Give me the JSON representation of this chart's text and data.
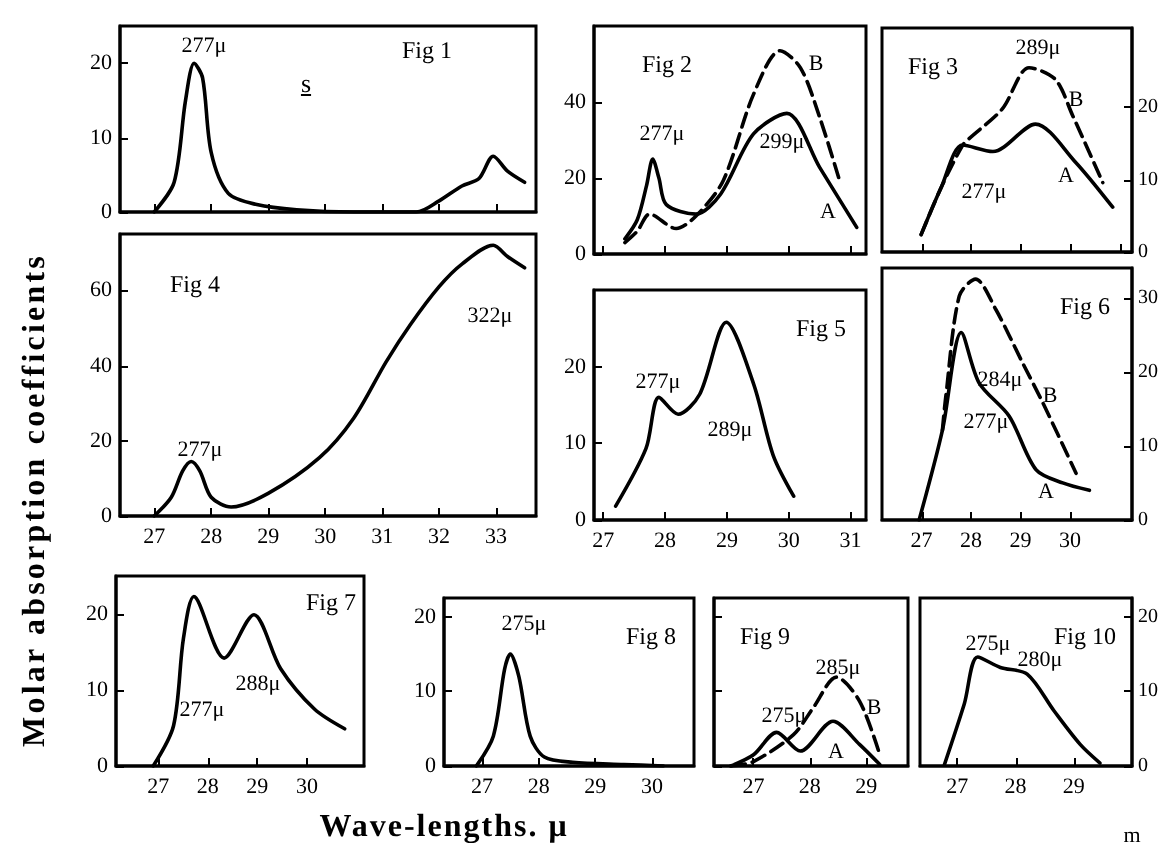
{
  "chart_data": [
    {
      "type": "line",
      "title": "Fig 1",
      "xlim": [
        26.4,
        33.7
      ],
      "xticks": [
        27,
        28,
        29,
        30,
        31,
        32,
        33
      ],
      "ylim": [
        0,
        25
      ],
      "yticks": [
        0,
        10,
        20
      ],
      "tick_labels": "y",
      "x": [
        27.0,
        27.35,
        27.55,
        27.7,
        27.85,
        28.0,
        28.3,
        28.8,
        29.5,
        30.5,
        31.6,
        32.0,
        32.4,
        32.7,
        32.95,
        33.2,
        33.5
      ],
      "series": [
        {
          "color": "#000000",
          "values": [
            0,
            4,
            15,
            20,
            18,
            8,
            2.5,
            1,
            0.3,
            0,
            0,
            1.5,
            3.5,
            4.5,
            7.5,
            5.5,
            4
          ]
        }
      ],
      "annotations": [
        "277μ",
        "s"
      ]
    },
    {
      "type": "line",
      "title": "Fig 2",
      "xlim": [
        26.85,
        31.25
      ],
      "xticks": [
        27,
        28,
        29,
        30,
        31
      ],
      "ylim": [
        0,
        60
      ],
      "yticks": [
        0,
        20,
        40
      ],
      "tick_labels": "y",
      "series": [
        {
          "color": "#000000",
          "x": [
            27.35,
            27.55,
            27.7,
            27.8,
            27.9,
            28.02,
            28.5,
            28.9,
            29.43,
            29.97,
            30.5,
            31.1
          ],
          "values": [
            4,
            9,
            18,
            25,
            20,
            13,
            10.5,
            15.8,
            31.6,
            37,
            22.8,
            7
          ]
        },
        {
          "color": "#000000",
          "line_style": "dashed",
          "x": [
            27.35,
            27.55,
            27.75,
            28.18,
            28.5,
            28.94,
            29.43,
            29.86,
            30.19,
            30.5,
            30.84
          ],
          "values": [
            3,
            6,
            10.5,
            6.7,
            10,
            19.3,
            42,
            53.5,
            49,
            36,
            18.4
          ]
        }
      ],
      "annotations": [
        "277μ",
        "299μ",
        "A",
        "B"
      ]
    },
    {
      "type": "line",
      "title": "Fig 3",
      "xlim": [
        26.2,
        31.25
      ],
      "xticks": [
        27,
        28,
        29,
        30,
        31
      ],
      "ylim": [
        0,
        31
      ],
      "yticks": [
        0,
        10,
        20
      ],
      "tick_labels": "y",
      "series": [
        {
          "color": "#000000",
          "x": [
            26.99,
            27.4,
            27.83,
            28.44,
            29.3,
            30.1,
            30.86
          ],
          "values": [
            2.4,
            9,
            14.8,
            13.9,
            17.7,
            12.5,
            6.2
          ]
        },
        {
          "color": "#000000",
          "line_style": "dashed",
          "x": [
            26.99,
            27.4,
            27.83,
            27.96,
            28.63,
            29.17,
            29.7,
            30.05,
            30.66
          ],
          "values": [
            2.4,
            9,
            14.8,
            15.7,
            19.8,
            25.5,
            23.9,
            18.9,
            9.6
          ]
        }
      ],
      "annotations": [
        "289μ",
        "B",
        "277μ",
        "A"
      ]
    },
    {
      "type": "line",
      "title": "Fig 4",
      "ylabel": "Molar absorption coefficients",
      "xlim": [
        26.4,
        33.7
      ],
      "xticks": [
        27,
        28,
        29,
        30,
        31,
        32,
        33
      ],
      "ylim": [
        0,
        75
      ],
      "yticks": [
        0,
        20,
        40,
        60
      ],
      "x": [
        27.0,
        27.3,
        27.5,
        27.65,
        27.8,
        28.0,
        28.35,
        29.0,
        29.9,
        30.5,
        31.07,
        31.5,
        32.0,
        32.4,
        32.95,
        33.2,
        33.5
      ],
      "series": [
        {
          "color": "#000000",
          "values": [
            0,
            5,
            12,
            14.5,
            12,
            5,
            2.4,
            6,
            15.5,
            26,
            41,
            51,
            61,
            67,
            72,
            69,
            66
          ]
        }
      ],
      "annotations": [
        "277μ",
        "322μ"
      ]
    },
    {
      "type": "line",
      "title": "Fig 5",
      "xlim": [
        26.85,
        31.25
      ],
      "xticks": [
        27,
        28,
        29,
        30,
        31
      ],
      "ylim": [
        0,
        30
      ],
      "yticks": [
        0,
        10,
        20
      ],
      "series": [
        {
          "color": "#000000",
          "x": [
            27.2,
            27.69,
            27.9,
            28.21,
            28.56,
            28.99,
            29.43,
            29.75,
            30.08
          ],
          "values": [
            1.8,
            9.3,
            16,
            13.8,
            16.4,
            25.8,
            17.8,
            8.4,
            3.1
          ]
        }
      ],
      "annotations": [
        "277μ",
        "289μ"
      ]
    },
    {
      "type": "line",
      "title": "Fig 6",
      "xlim": [
        26.2,
        31.25
      ],
      "xticks": [
        27,
        28,
        29,
        30
      ],
      "ylim": [
        0,
        34
      ],
      "yticks": [
        0,
        10,
        20,
        30
      ],
      "series": [
        {
          "color": "#000000",
          "x": [
            26.95,
            27.42,
            27.8,
            28.16,
            28.77,
            29.31,
            29.85,
            30.39
          ],
          "values": [
            0,
            12.1,
            25.3,
            18.5,
            14,
            6.8,
            5,
            4
          ]
        },
        {
          "color": "#000000",
          "line_style": "dashed",
          "x": [
            27.42,
            27.49,
            27.76,
            28.09,
            28.5,
            29.04,
            29.45,
            30.12
          ],
          "values": [
            12.1,
            16.7,
            30.2,
            32.5,
            28.4,
            21.2,
            15.8,
            6.3
          ]
        }
      ],
      "annotations": [
        "284μ",
        "B",
        "277μ",
        "A"
      ]
    },
    {
      "type": "line",
      "title": "Fig 7",
      "xlim": [
        26.15,
        31.15
      ],
      "xticks": [
        27,
        28,
        29,
        30
      ],
      "ylim": [
        0,
        25
      ],
      "yticks": [
        0,
        10,
        20
      ],
      "series": [
        {
          "color": "#000000",
          "x": [
            26.9,
            27.31,
            27.51,
            27.72,
            28.33,
            28.93,
            29.47,
            30.15,
            30.76
          ],
          "values": [
            0,
            5.3,
            16.8,
            22.3,
            14.2,
            19.9,
            12.8,
            7.5,
            4.9
          ]
        }
      ],
      "annotations": [
        "277μ",
        "288μ"
      ]
    },
    {
      "type": "line",
      "title": "Fig 8",
      "xlabel": "Wave-lengths. μ",
      "xlim": [
        26.33,
        30.74
      ],
      "xticks": [
        27,
        28,
        29,
        30
      ],
      "ylim": [
        0,
        22.5
      ],
      "yticks": [
        0,
        10,
        20
      ],
      "series": [
        {
          "color": "#000000",
          "x": [
            26.9,
            27.2,
            27.4,
            27.5,
            27.65,
            27.85,
            28.1,
            28.6,
            29.5,
            30.2
          ],
          "values": [
            0,
            4,
            13,
            15,
            12,
            4,
            1.2,
            0.5,
            0.2,
            0
          ]
        }
      ],
      "annotations": [
        "275μ"
      ]
    },
    {
      "type": "line",
      "title": "Fig 9",
      "xlim": [
        26.3,
        29.74
      ],
      "xticks": [
        27,
        28,
        29
      ],
      "ylim": [
        0,
        22.5
      ],
      "yticks": [
        0,
        10,
        20
      ],
      "tick_labels": "x",
      "series": [
        {
          "color": "#000000",
          "x": [
            26.6,
            27.0,
            27.41,
            27.83,
            28.41,
            28.88,
            29.24
          ],
          "values": [
            0,
            1.5,
            4.5,
            2,
            6,
            2.9,
            0.2
          ]
        },
        {
          "color": "#000000",
          "line_style": "dashed",
          "x": [
            26.6,
            27.0,
            27.71,
            28.06,
            28.47,
            28.88,
            29.24
          ],
          "values": [
            0,
            0.6,
            4.2,
            7.8,
            11.9,
            8.7,
            1.5
          ]
        }
      ],
      "annotations": [
        "275μ",
        "285μ",
        "B",
        "A"
      ]
    },
    {
      "type": "line",
      "title": "Fig 10",
      "xlim": [
        26.36,
        30.0
      ],
      "xticks": [
        27,
        28,
        29
      ],
      "ylim": [
        0,
        22.5
      ],
      "yticks": [
        0,
        10,
        20
      ],
      "series": [
        {
          "color": "#000000",
          "x": [
            26.78,
            27.12,
            27.35,
            27.74,
            28.2,
            28.66,
            29.11,
            29.45
          ],
          "values": [
            0.2,
            8.3,
            14.6,
            13.2,
            12.3,
            7.4,
            2.9,
            0.4
          ]
        }
      ],
      "annotations": [
        "275μ",
        "280μ",
        "m"
      ]
    }
  ]
}
